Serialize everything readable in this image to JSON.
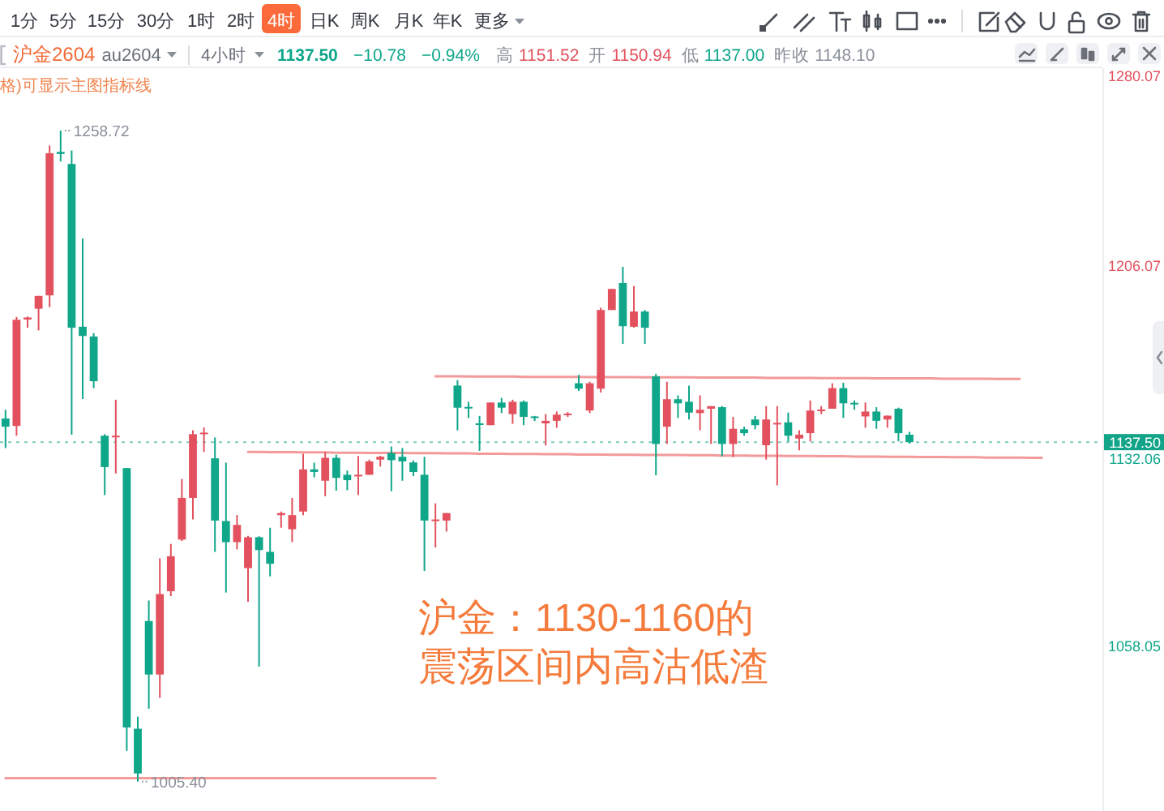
{
  "chart_data": {
    "type": "candlestick",
    "title": "沪金2604",
    "subtitle": "au2604",
    "categories": [
      null,
      null,
      null,
      null,
      null,
      null,
      null,
      null,
      null,
      null,
      null,
      null,
      null,
      null,
      null,
      null,
      null,
      null,
      null,
      null,
      null,
      null,
      null,
      null,
      null,
      null,
      null,
      null,
      null,
      null,
      null,
      null,
      null,
      null,
      null,
      null,
      null,
      null,
      null,
      null,
      null,
      null,
      null,
      null,
      null,
      null,
      null,
      null,
      null,
      null,
      null,
      null,
      null,
      null,
      null,
      null,
      null,
      null,
      null,
      null,
      null,
      null,
      null,
      null,
      null,
      null,
      null,
      null,
      null,
      null,
      null,
      null,
      null,
      null,
      null,
      null,
      null,
      null,
      null,
      null,
      null,
      null,
      null,
      null,
      null,
      null,
      null,
      null,
      null,
      null,
      null,
      null,
      null,
      null,
      null,
      null,
      null,
      null,
      null,
      null
    ],
    "ohlc": [
      [
        1146.7,
        1150.1,
        1135.2,
        1143.5
      ],
      [
        1143.8,
        1186.2,
        1140.0,
        1185.1
      ],
      [
        1185.2,
        1186.4,
        1182.0,
        1186.0
      ],
      [
        1189.4,
        1194.4,
        1181.0,
        1194.4
      ],
      [
        1194.6,
        1252.9,
        1190.0,
        1249.9
      ],
      [
        1250.4,
        1258.72,
        1246.7,
        1249.6
      ],
      [
        1245.7,
        1251.0,
        1140.4,
        1182.0
      ],
      [
        1182.4,
        1216.7,
        1154.3,
        1178.8
      ],
      [
        1178.6,
        1179.9,
        1158.5,
        1161.2
      ],
      [
        1140.0,
        1140.6,
        1116.9,
        1127.8
      ],
      [
        1139.6,
        1154.0,
        1125.3,
        1140.0
      ],
      [
        1127.4,
        1127.4,
        1017.4,
        1026.5
      ],
      [
        1026.0,
        1030.7,
        1005.4,
        1008.6
      ],
      [
        1067.9,
        1075.9,
        1033.8,
        1047.1
      ],
      [
        1047.1,
        1092.3,
        1038.0,
        1078.4
      ],
      [
        1079.5,
        1097.9,
        1077.6,
        1093.1
      ],
      [
        1099.6,
        1123.2,
        1099.0,
        1115.8
      ],
      [
        1115.8,
        1142.1,
        1107.4,
        1140.6
      ],
      [
        1140.6,
        1143.2,
        1133.7,
        1141.2
      ],
      [
        1131.2,
        1139.3,
        1094.8,
        1107.0
      ],
      [
        1106.8,
        1129.5,
        1079.0,
        1098.6
      ],
      [
        1098.6,
        1109.1,
        1095.8,
        1105.3
      ],
      [
        1088.5,
        1101.0,
        1075.4,
        1100.5
      ],
      [
        1100.5,
        1100.9,
        1050.2,
        1095.5
      ],
      [
        1094.8,
        1104.2,
        1085.3,
        1090.2
      ],
      [
        1109.1,
        1110.5,
        1104.2,
        1109.9
      ],
      [
        1103.6,
        1115.8,
        1098.6,
        1109.1
      ],
      [
        1110.5,
        1133.0,
        1109.1,
        1126.9
      ],
      [
        1126.9,
        1129.5,
        1123.8,
        1125.9
      ],
      [
        1122.5,
        1133.7,
        1116.5,
        1131.4
      ],
      [
        1131.4,
        1132.6,
        1118.6,
        1123.6
      ],
      [
        1124.8,
        1126.4,
        1118.8,
        1122.7
      ],
      [
        1124.5,
        1132.1,
        1116.9,
        1124.8
      ],
      [
        1124.8,
        1130.7,
        1124.8,
        1130.0
      ],
      [
        1130.7,
        1132.2,
        1128.0,
        1131.8
      ],
      [
        1133.3,
        1135.8,
        1118.4,
        1130.5
      ],
      [
        1131.8,
        1135.2,
        1122.5,
        1130.0
      ],
      [
        1129.6,
        1130.4,
        1124.3,
        1125.9
      ],
      [
        1124.8,
        1131.8,
        1087.4,
        1107.0
      ],
      [
        1106.8,
        1113.7,
        1096.5,
        1107.4
      ],
      [
        1107.0,
        1109.9,
        1102.7,
        1109.9
      ],
      [
        1159.5,
        1161.6,
        1142.1,
        1150.9
      ],
      [
        1151.2,
        1153.2,
        1146.9,
        1150.7
      ],
      [
        1144.8,
        1147.7,
        1134.1,
        1144.4
      ],
      [
        1144.1,
        1152.9,
        1144.1,
        1152.9
      ],
      [
        1152.9,
        1154.7,
        1148.8,
        1150.9
      ],
      [
        1148.4,
        1154.0,
        1144.6,
        1153.2
      ],
      [
        1153.2,
        1153.7,
        1144.1,
        1147.3
      ],
      [
        1147.5,
        1147.7,
        1145.7,
        1147.1
      ],
      [
        1144.8,
        1148.4,
        1136.2,
        1145.8
      ],
      [
        1145.8,
        1149.4,
        1143.1,
        1148.2
      ],
      [
        1148.2,
        1149.2,
        1147.3,
        1148.6
      ],
      [
        1160.4,
        1163.7,
        1157.4,
        1158.3
      ],
      [
        1149.8,
        1161.0,
        1148.8,
        1160.4
      ],
      [
        1158.3,
        1189.8,
        1156.8,
        1188.9
      ],
      [
        1188.9,
        1197.1,
        1188.9,
        1197.1
      ],
      [
        1199.4,
        1205.7,
        1175.7,
        1182.6
      ],
      [
        1182.4,
        1198.2,
        1182.0,
        1188.3
      ],
      [
        1188.3,
        1188.9,
        1175.7,
        1182.0
      ],
      [
        1163.1,
        1164.1,
        1124.6,
        1136.8
      ],
      [
        1143.5,
        1161.0,
        1136.8,
        1154.2
      ],
      [
        1154.2,
        1155.7,
        1146.9,
        1152.6
      ],
      [
        1153.2,
        1159.5,
        1146.3,
        1149.0
      ],
      [
        1148.8,
        1155.7,
        1142.1,
        1150.1
      ],
      [
        1150.5,
        1151.5,
        1136.8,
        1151.5
      ],
      [
        1151.1,
        1151.5,
        1132.0,
        1136.8
      ],
      [
        1136.8,
        1147.3,
        1131.7,
        1142.7
      ],
      [
        1142.5,
        1143.5,
        1140.0,
        1141.0
      ],
      [
        1146.3,
        1147.7,
        1142.5,
        1144.1
      ],
      [
        1136.3,
        1151.5,
        1130.7,
        1146.3
      ],
      [
        1144.6,
        1151.5,
        1120.7,
        1145.0
      ],
      [
        1145.2,
        1149.0,
        1137.8,
        1140.0
      ],
      [
        1138.9,
        1142.1,
        1134.3,
        1140.4
      ],
      [
        1141.0,
        1153.7,
        1137.8,
        1149.8
      ],
      [
        1149.8,
        1151.5,
        1148.4,
        1150.2
      ],
      [
        1150.5,
        1160.4,
        1150.5,
        1158.5
      ],
      [
        1158.5,
        1160.6,
        1146.9,
        1152.6
      ],
      [
        1152.8,
        1153.7,
        1150.1,
        1152.4
      ],
      [
        1147.5,
        1152.9,
        1143.1,
        1149.4
      ],
      [
        1149.4,
        1151.1,
        1142.7,
        1145.8
      ],
      [
        1146.3,
        1147.8,
        1143.1,
        1147.8
      ],
      [
        1150.5,
        1150.9,
        1137.8,
        1141.0
      ],
      [
        1140.4,
        1141.5,
        1137.0,
        1137.5
      ],
      null,
      null,
      null,
      null,
      null,
      null,
      null,
      null,
      null,
      null,
      null,
      null,
      null,
      null,
      null,
      null,
      null
    ],
    "colors": [
      "#0fa68a",
      "#e2515d",
      "#e2515d",
      "#e2515d",
      "#e2515d",
      "#0fa68a",
      "#0fa68a",
      "#0fa68a",
      "#0fa68a",
      "#0fa68a",
      "#e2515d",
      "#0fa68a",
      "#0fa68a",
      "#0fa68a",
      "#e2515d",
      "#e2515d",
      "#e2515d",
      "#e2515d",
      "#e2515d",
      "#0fa68a",
      "#0fa68a",
      "#e2515d",
      "#e2515d",
      "#0fa68a",
      "#0fa68a",
      "#e2515d",
      "#e2515d",
      "#e2515d",
      "#0fa68a",
      "#e2515d",
      "#0fa68a",
      "#0fa68a",
      "#e2515d",
      "#e2515d",
      "#e2515d",
      "#0fa68a",
      "#0fa68a",
      "#0fa68a",
      "#0fa68a",
      "#e2515d",
      "#e2515d",
      "#0fa68a",
      "#0fa68a",
      "#0fa68a",
      "#e2515d",
      "#0fa68a",
      "#e2515d",
      "#0fa68a",
      "#0fa68a",
      "#e2515d",
      "#e2515d",
      "#e2515d",
      "#0fa68a",
      "#e2515d",
      "#e2515d",
      "#e2515d",
      "#0fa68a",
      "#e2515d",
      "#0fa68a",
      "#0fa68a",
      "#e2515d",
      "#0fa68a",
      "#0fa68a",
      "#e2515d",
      "#e2515d",
      "#0fa68a",
      "#e2515d",
      "#0fa68a",
      "#0fa68a",
      "#e2515d",
      "#e2515d",
      "#0fa68a",
      "#e2515d",
      "#e2515d",
      "#e2515d",
      "#e2515d",
      "#0fa68a",
      "#0fa68a",
      "#e2515d",
      "#0fa68a",
      "#e2515d",
      "#0fa68a",
      "#0fa68a",
      null,
      null,
      null,
      null,
      null,
      null,
      null,
      null,
      null,
      null,
      null,
      null,
      null,
      null,
      null,
      null,
      null
    ],
    "series": [
      {
        "type": "line",
        "color": "#f39a9a",
        "values": [
          null,
          null,
          null,
          null,
          null,
          null,
          null,
          null,
          null,
          null,
          null,
          null,
          null,
          null,
          null,
          null,
          null,
          null,
          null,
          null,
          null,
          null,
          null,
          null,
          null,
          null,
          null,
          null,
          null,
          null,
          null,
          null,
          null,
          null,
          null,
          null,
          null,
          null,
          null,
          1163.1,
          1163.1,
          1163.1,
          1163.0,
          1163.0,
          1163.0,
          1163.0,
          1163.0,
          1162.9,
          1162.9,
          1162.9,
          1162.9,
          1162.9,
          1162.9,
          1162.8,
          1162.8,
          1162.8,
          1162.8,
          1162.8,
          1162.7,
          1162.7,
          1162.7,
          1162.7,
          1162.7,
          1162.6,
          1162.6,
          1162.6,
          1162.6,
          1162.6,
          1162.6,
          1162.5,
          1162.5,
          1162.5,
          1162.5,
          1162.5,
          1162.4,
          1162.4,
          1162.4,
          1162.4,
          1162.4,
          1162.3,
          1162.3,
          1162.3,
          1162.3,
          1162.3,
          1162.3,
          1162.2,
          1162.2,
          1162.2,
          1162.2,
          1162.2,
          1162.1,
          1162.1,
          1162.1,
          null,
          null,
          null,
          null,
          null,
          null,
          null
        ]
      },
      {
        "type": "line",
        "color": "#f39a9a",
        "values": [
          null,
          null,
          null,
          null,
          null,
          null,
          null,
          null,
          null,
          null,
          null,
          null,
          null,
          null,
          null,
          null,
          null,
          null,
          null,
          null,
          null,
          null,
          1133.7,
          1133.7,
          1133.6,
          1133.6,
          1133.6,
          1133.5,
          1133.5,
          1133.5,
          1133.4,
          1133.4,
          1133.4,
          1133.3,
          1133.3,
          1133.3,
          1133.3,
          1133.2,
          1133.2,
          1133.2,
          1133.1,
          1133.1,
          1133.1,
          1133.0,
          1133.0,
          1133.0,
          1132.9,
          1132.9,
          1132.9,
          1132.8,
          1132.8,
          1132.8,
          1132.7,
          1132.7,
          1132.7,
          1132.6,
          1132.6,
          1132.6,
          1132.5,
          1132.5,
          1132.5,
          1132.5,
          1132.4,
          1132.4,
          1132.4,
          1132.3,
          1132.3,
          1132.3,
          1132.2,
          1132.2,
          1132.2,
          1132.1,
          1132.1,
          1132.1,
          1132.0,
          1132.0,
          1132.0,
          1131.9,
          1131.9,
          1131.9,
          1131.8,
          1131.8,
          1131.8,
          1131.7,
          1131.7,
          1131.7,
          1131.6,
          1131.6,
          1131.6,
          1131.5,
          1131.5,
          1131.5,
          1131.5,
          1131.4,
          1131.4,
          null,
          null,
          null,
          null,
          null
        ]
      },
      {
        "type": "line",
        "color": "#f39a9a",
        "values": [
          1006.8,
          1006.8,
          1006.8,
          1006.8,
          1006.8,
          1006.8,
          1006.8,
          1006.8,
          1006.8,
          1006.8,
          1006.8,
          1006.8,
          1006.8,
          1006.8,
          1006.8,
          1006.8,
          1006.8,
          1006.8,
          1006.8,
          1006.8,
          1006.8,
          1006.8,
          1006.8,
          1006.8,
          1006.8,
          1006.8,
          1006.8,
          1006.8,
          1006.8,
          1006.8,
          1006.8,
          1006.8,
          1006.8,
          1006.8,
          1006.8,
          1006.8,
          1006.8,
          1006.8,
          1006.8,
          1006.8,
          null,
          null,
          null,
          null,
          null,
          null,
          null,
          null,
          null,
          null,
          null,
          null,
          null,
          null,
          null,
          null,
          null,
          null,
          null,
          null,
          null,
          null,
          null,
          null,
          null,
          null,
          null,
          null,
          null,
          null,
          null,
          null,
          null,
          null,
          null,
          null,
          null,
          null,
          null,
          null,
          null,
          null,
          null,
          null,
          null,
          null,
          null,
          null,
          null,
          null,
          null,
          null,
          null,
          null,
          null,
          null,
          null,
          null,
          null,
          null
        ]
      }
    ],
    "ylim": [
      994,
      1283
    ],
    "yticks": [
      1280.07,
      1206.07,
      1132.06,
      1058.05
    ],
    "tick_labels": "y",
    "ref_lines": [
      {
        "axis": "y",
        "value": 1137.5,
        "label": "1137.50",
        "color": "#12a488",
        "line_style": "dotted"
      }
    ],
    "annotations": [
      "1分",
      "5分",
      "15分",
      "30分",
      "1时",
      "2时",
      "4时",
      "日K",
      "周K",
      "月K",
      "年K",
      "更多",
      "4小时",
      "1137.50",
      "−10.78",
      "−0.94%",
      "高",
      "1151.52",
      "开",
      "1150.94",
      "低",
      "1137.00",
      "昨收",
      "1148.10",
      "格)可显示主图指标线",
      "1258.72",
      "1005.40",
      "沪金：1130-1160的",
      "震荡区间内高沽低渣"
    ]
  }
}
